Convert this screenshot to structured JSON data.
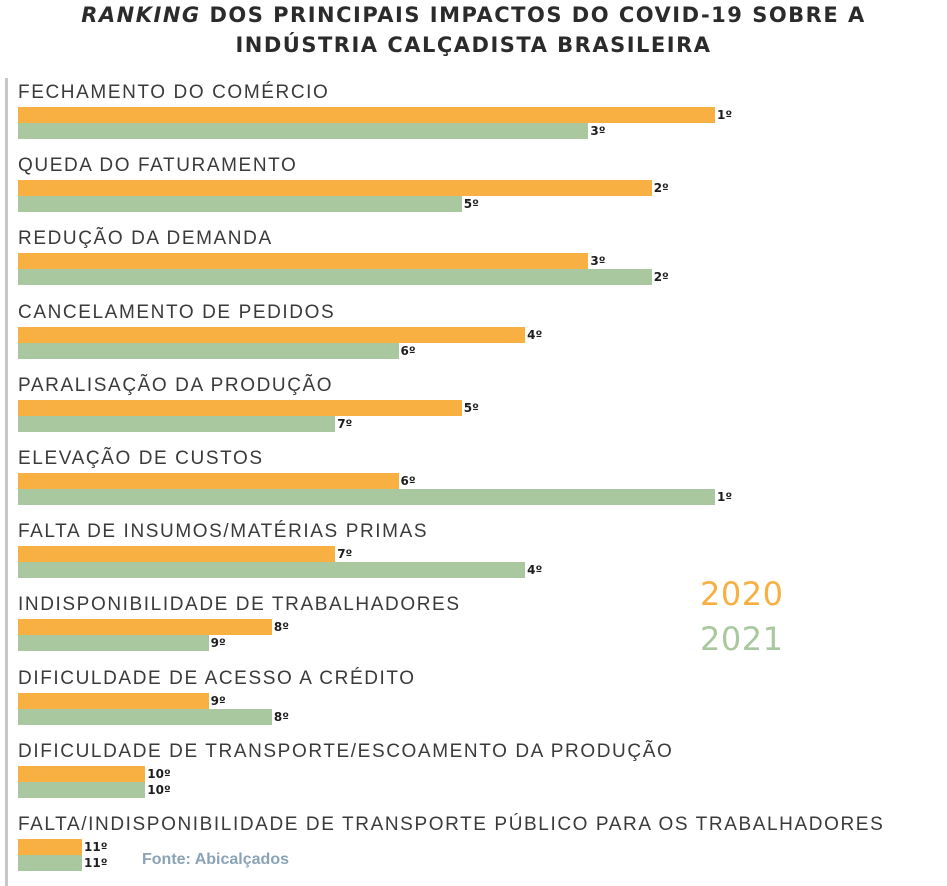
{
  "title": {
    "line1_italic": "RANKING",
    "line1_rest": " DOS PRINCIPAIS IMPACTOS DO COVID-19 SOBRE A",
    "line2": "INDÚSTRIA CALÇADISTA BRASILEIRA"
  },
  "source": "Fonte: Abicalçados",
  "colors": {
    "2020": "#f8b043",
    "2021": "#a9c8a0"
  },
  "chart_data": {
    "type": "bar",
    "orientation": "horizontal",
    "legend": [
      "2020",
      "2021"
    ],
    "categories": [
      "FECHAMENTO DO COMÉRCIO",
      "QUEDA DO FATURAMENTO",
      "REDUÇÃO DA DEMANDA",
      "CANCELAMENTO DE PEDIDOS",
      "PARALISAÇÃO DA PRODUÇÃO",
      "ELEVAÇÃO DE CUSTOS",
      "FALTA DE INSUMOS/MATÉRIAS PRIMAS",
      "INDISPONIBILIDADE DE TRABALHADORES",
      "DIFICULDADE DE ACESSO A CRÉDITO",
      "DIFICULDADE DE TRANSPORTE/ESCOAMENTO DA PRODUÇÃO",
      "FALTA/INDISPONIBILIDADE DE TRANSPORTE PÚBLICO PARA OS TRABALHADORES"
    ],
    "series": [
      {
        "name": "2020",
        "ranks": [
          1,
          2,
          3,
          4,
          5,
          6,
          7,
          8,
          9,
          10,
          11
        ],
        "labels": [
          "1º",
          "2º",
          "3º",
          "4º",
          "5º",
          "6º",
          "7º",
          "8º",
          "9º",
          "10º",
          "11º"
        ]
      },
      {
        "name": "2021",
        "ranks": [
          3,
          5,
          2,
          6,
          7,
          1,
          4,
          9,
          8,
          10,
          11
        ],
        "labels": [
          "3º",
          "5º",
          "2º",
          "6º",
          "7º",
          "1º",
          "4º",
          "9º",
          "8º",
          "10º",
          "11º"
        ]
      }
    ]
  }
}
